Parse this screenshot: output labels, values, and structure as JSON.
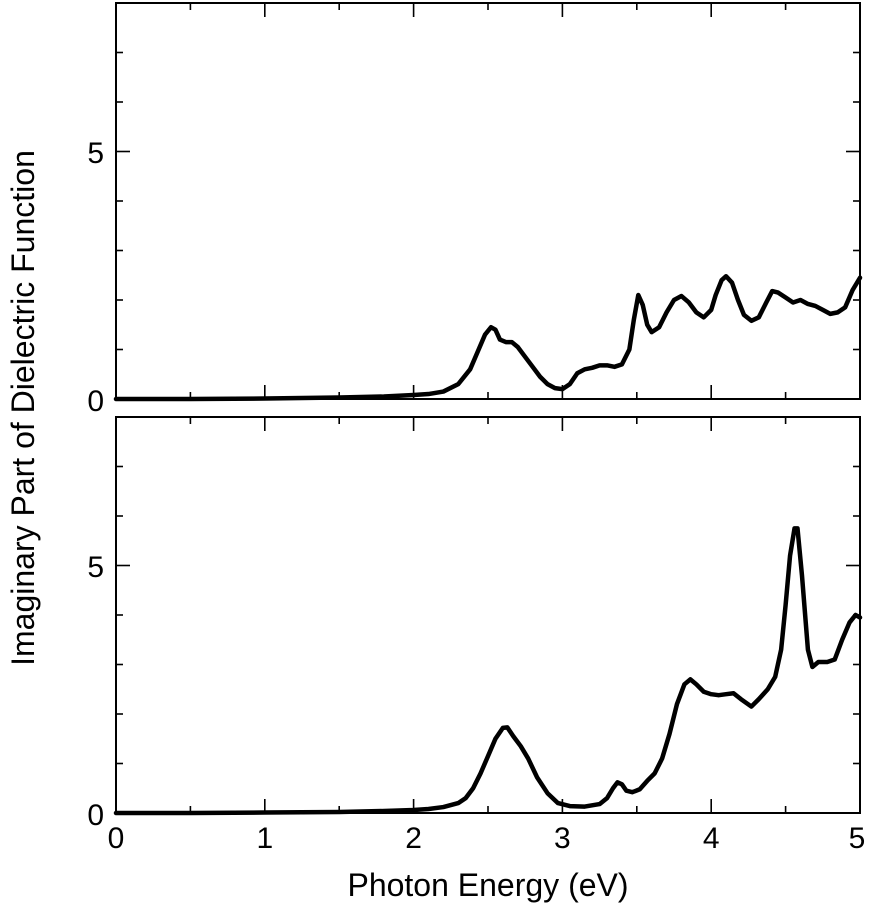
{
  "chart_data": [
    {
      "type": "line",
      "panel": "top",
      "xlim": [
        0,
        5
      ],
      "ylim": [
        0,
        8
      ],
      "x_ticks": [
        0,
        1,
        2,
        3,
        4,
        5
      ],
      "y_tick_labels": [
        "0",
        "5"
      ],
      "y_tick_values": [
        0,
        5
      ],
      "series": [
        {
          "color": "#000000",
          "x": [
            0,
            0.5,
            1.0,
            1.5,
            1.8,
            2.0,
            2.1,
            2.2,
            2.3,
            2.38,
            2.43,
            2.48,
            2.52,
            2.55,
            2.58,
            2.62,
            2.66,
            2.7,
            2.75,
            2.8,
            2.85,
            2.9,
            2.95,
            3.0,
            3.05,
            3.1,
            3.15,
            3.2,
            3.25,
            3.3,
            3.35,
            3.4,
            3.45,
            3.48,
            3.51,
            3.54,
            3.57,
            3.6,
            3.65,
            3.7,
            3.75,
            3.8,
            3.85,
            3.9,
            3.95,
            4.0,
            4.03,
            4.07,
            4.1,
            4.14,
            4.18,
            4.22,
            4.27,
            4.32,
            4.37,
            4.41,
            4.45,
            4.5,
            4.55,
            4.6,
            4.65,
            4.7,
            4.75,
            4.8,
            4.85,
            4.9,
            4.95,
            5.0
          ],
          "y": [
            0.0,
            0.0,
            0.01,
            0.03,
            0.05,
            0.08,
            0.1,
            0.15,
            0.3,
            0.6,
            0.95,
            1.3,
            1.45,
            1.4,
            1.2,
            1.15,
            1.15,
            1.05,
            0.85,
            0.65,
            0.45,
            0.3,
            0.22,
            0.2,
            0.3,
            0.52,
            0.6,
            0.63,
            0.68,
            0.68,
            0.65,
            0.7,
            1.0,
            1.6,
            2.1,
            1.9,
            1.5,
            1.35,
            1.45,
            1.75,
            2.0,
            2.08,
            1.95,
            1.75,
            1.65,
            1.8,
            2.1,
            2.4,
            2.48,
            2.35,
            2.0,
            1.7,
            1.58,
            1.65,
            1.95,
            2.18,
            2.15,
            2.05,
            1.95,
            2.0,
            1.92,
            1.88,
            1.8,
            1.72,
            1.75,
            1.85,
            2.2,
            2.45
          ]
        }
      ]
    },
    {
      "type": "line",
      "panel": "bottom",
      "xlim": [
        0,
        5
      ],
      "ylim": [
        0,
        8
      ],
      "x_ticks": [
        0,
        1,
        2,
        3,
        4,
        5
      ],
      "x_tick_labels": [
        "0",
        "1",
        "2",
        "3",
        "4",
        "5"
      ],
      "y_tick_labels": [
        "0",
        "5"
      ],
      "y_tick_values": [
        0,
        5
      ],
      "xlabel": "Photon Energy (eV)",
      "series": [
        {
          "color": "#000000",
          "x": [
            0,
            0.5,
            1.0,
            1.5,
            1.8,
            2.0,
            2.1,
            2.2,
            2.3,
            2.35,
            2.4,
            2.45,
            2.5,
            2.55,
            2.6,
            2.63,
            2.67,
            2.72,
            2.77,
            2.83,
            2.9,
            2.97,
            3.05,
            3.15,
            3.25,
            3.3,
            3.34,
            3.37,
            3.4,
            3.43,
            3.47,
            3.52,
            3.57,
            3.62,
            3.67,
            3.72,
            3.77,
            3.82,
            3.86,
            3.9,
            3.95,
            4.0,
            4.05,
            4.1,
            4.15,
            4.2,
            4.27,
            4.32,
            4.38,
            4.43,
            4.47,
            4.5,
            4.53,
            4.56,
            4.58,
            4.61,
            4.65,
            4.68,
            4.72,
            4.78,
            4.83,
            4.88,
            4.93,
            4.97,
            5.0
          ],
          "y": [
            0.0,
            0.0,
            0.01,
            0.02,
            0.04,
            0.06,
            0.08,
            0.12,
            0.2,
            0.3,
            0.5,
            0.8,
            1.15,
            1.5,
            1.72,
            1.73,
            1.55,
            1.35,
            1.1,
            0.72,
            0.4,
            0.2,
            0.14,
            0.13,
            0.18,
            0.3,
            0.5,
            0.62,
            0.58,
            0.45,
            0.42,
            0.48,
            0.65,
            0.8,
            1.1,
            1.6,
            2.2,
            2.6,
            2.7,
            2.6,
            2.45,
            2.4,
            2.38,
            2.4,
            2.42,
            2.3,
            2.15,
            2.3,
            2.5,
            2.75,
            3.3,
            4.2,
            5.2,
            5.75,
            5.75,
            4.8,
            3.3,
            2.95,
            3.05,
            3.05,
            3.1,
            3.5,
            3.85,
            4.0,
            3.95
          ]
        }
      ]
    }
  ],
  "shared_ylabel": "Imaginary Part of Dielectric Function"
}
